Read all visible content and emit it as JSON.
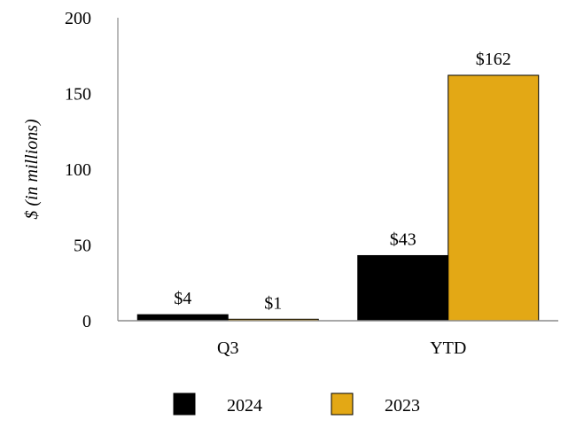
{
  "chart_data": {
    "type": "bar",
    "title": "",
    "xlabel": "",
    "ylabel": "$ (in millions)",
    "categories": [
      "Q3",
      "YTD"
    ],
    "series": [
      {
        "name": "2024",
        "color": "#000000",
        "values": [
          4,
          43
        ],
        "labels": [
          "$4",
          "$43"
        ]
      },
      {
        "name": "2023",
        "color": "#E3A815",
        "values": [
          1,
          162
        ],
        "labels": [
          "$1",
          "$162"
        ]
      }
    ],
    "ylim": [
      0,
      200
    ],
    "yticks": [
      0,
      50,
      100,
      150,
      200
    ],
    "ytick_labels": [
      "0",
      "50",
      "100",
      "150",
      "200"
    ],
    "grid": false,
    "legend_position": "bottom"
  }
}
